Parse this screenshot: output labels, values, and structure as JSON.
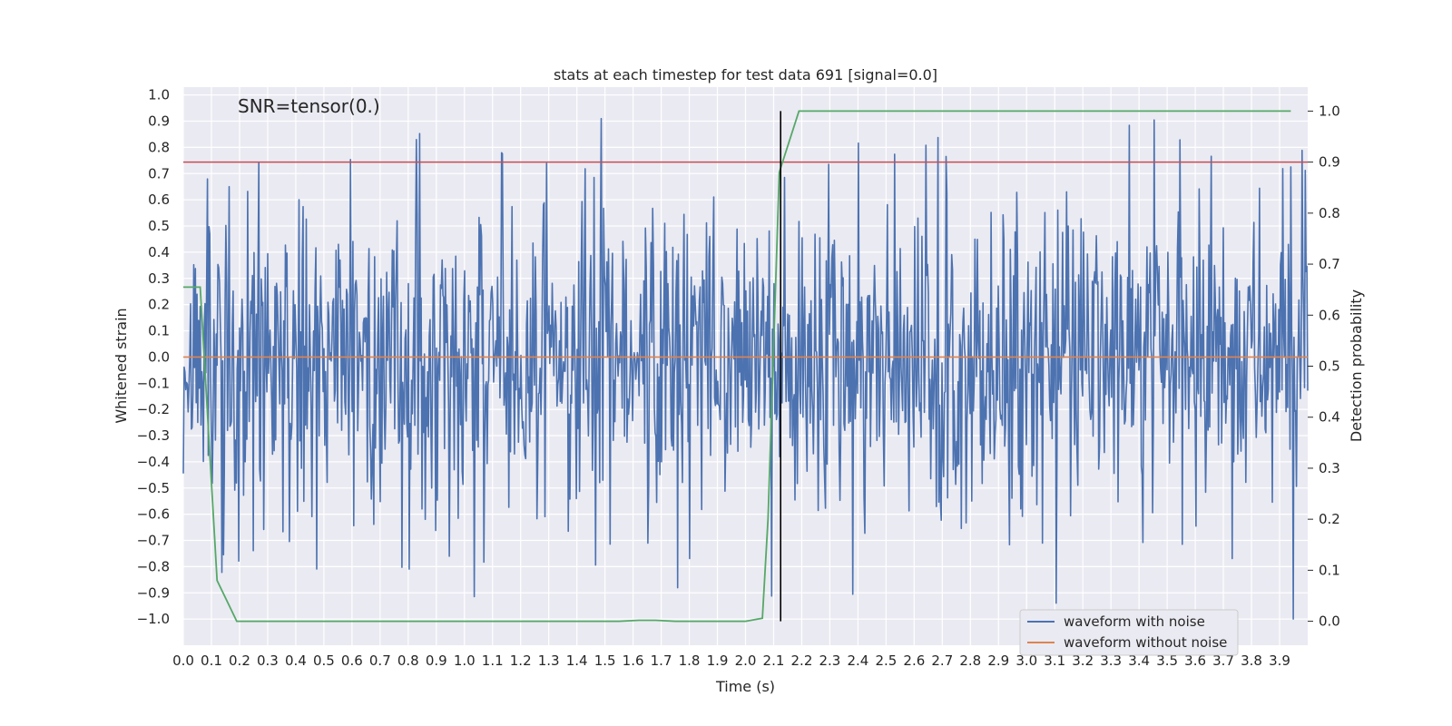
{
  "chart_data": {
    "type": "line",
    "title": "stats at each timestep for test data 691 [signal=0.0]",
    "annotation": "SNR=tensor(0.)",
    "xlabel": "Time (s)",
    "ylabel": "Whitened strain",
    "y2label": "Detection probability",
    "xlim": [
      0.0,
      4.0
    ],
    "ylim": [
      -1.1,
      1.03
    ],
    "y2lim": [
      -0.047,
      1.047
    ],
    "xticks": [
      "0.0",
      "0.1",
      "0.2",
      "0.3",
      "0.4",
      "0.5",
      "0.6",
      "0.7",
      "0.8",
      "0.9",
      "1.0",
      "1.1",
      "1.2",
      "1.3",
      "1.4",
      "1.5",
      "1.6",
      "1.7",
      "1.8",
      "1.9",
      "2.0",
      "2.1",
      "2.2",
      "2.3",
      "2.4",
      "2.5",
      "2.6",
      "2.7",
      "2.8",
      "2.9",
      "3.0",
      "3.1",
      "3.2",
      "3.3",
      "3.4",
      "3.5",
      "3.6",
      "3.7",
      "3.8",
      "3.9"
    ],
    "yticks": [
      "1.0",
      "0.9",
      "0.8",
      "0.7",
      "0.6",
      "0.5",
      "0.4",
      "0.3",
      "0.2",
      "0.1",
      "0.0",
      "−0.1",
      "−0.2",
      "−0.3",
      "−0.4",
      "−0.5",
      "−0.6",
      "−0.7",
      "−0.8",
      "−0.9",
      "−1.0"
    ],
    "y2ticks": [
      "1.0",
      "0.9",
      "0.8",
      "0.7",
      "0.6",
      "0.5",
      "0.4",
      "0.3",
      "0.2",
      "0.1",
      "0.0"
    ],
    "legend_position": "lower-right",
    "series": [
      {
        "name": "waveform with noise",
        "color": "#4c72b0",
        "kind": "noise",
        "amplitude_range": [
          -1.0,
          0.94
        ],
        "n_points": 1400
      },
      {
        "name": "waveform without noise",
        "color": "#dd8452",
        "kind": "flat",
        "value": 0.0
      }
    ],
    "detection_probability": {
      "color": "#55a868",
      "x": [
        0.0,
        0.06,
        0.12,
        0.19,
        0.5,
        1.0,
        1.55,
        1.62,
        1.68,
        1.75,
        1.85,
        2.0,
        2.06,
        2.08,
        2.12,
        2.19,
        3.94
      ],
      "y": [
        0.655,
        0.655,
        0.08,
        0.0,
        0.0,
        0.0,
        0.0,
        0.002,
        0.002,
        0.0,
        0.0,
        0.0,
        0.006,
        0.2,
        0.88,
        1.0,
        1.0
      ]
    },
    "threshold": {
      "color": "#c44e52",
      "value": 0.9,
      "axis": "right"
    },
    "marker_line": {
      "color": "#000000",
      "x": 2.125,
      "y_range": [
        0.0,
        1.0
      ],
      "axis": "right"
    }
  }
}
